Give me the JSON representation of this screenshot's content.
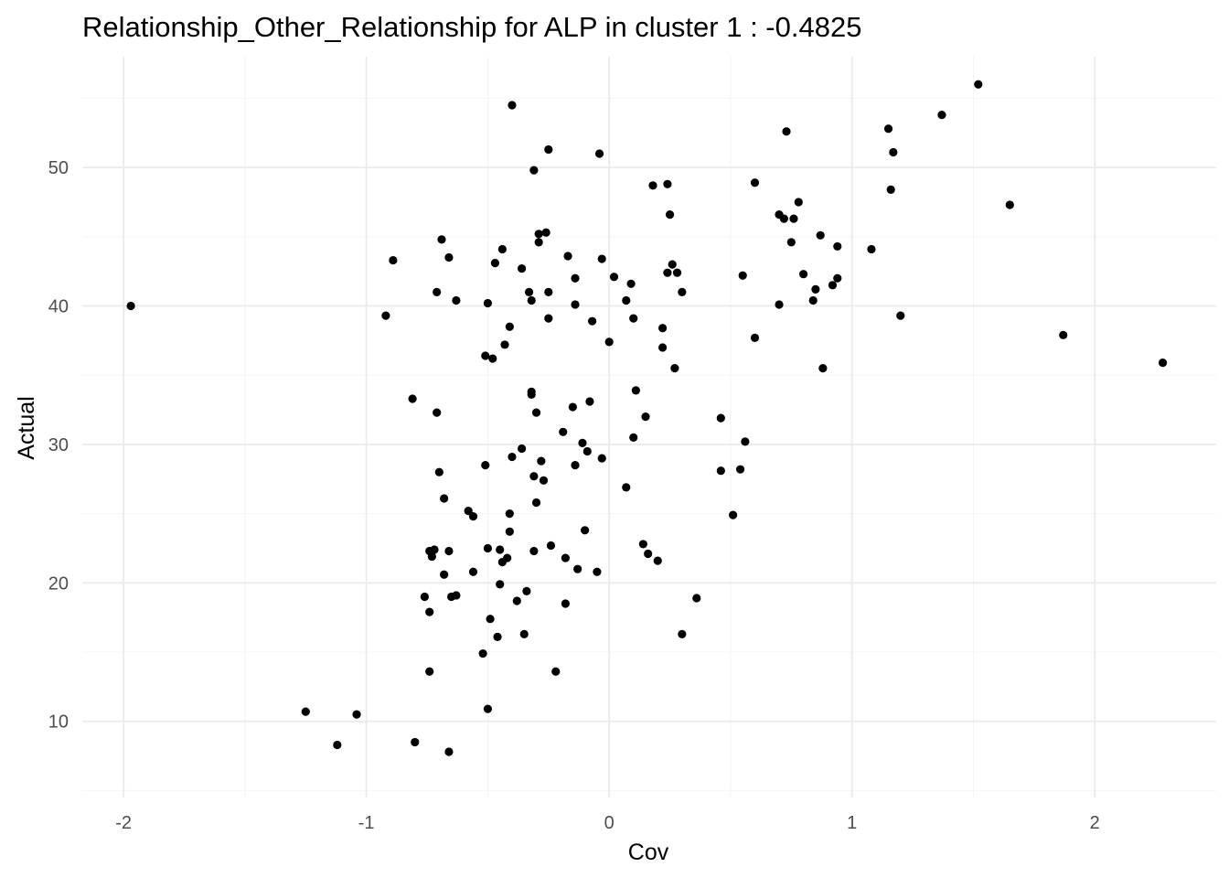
{
  "chart_data": {
    "type": "scatter",
    "title": "Relationship_Other_Relationship for ALP in cluster 1 : -0.4825",
    "xlabel": "Cov",
    "ylabel": "Actual",
    "xlim": [
      -2.17,
      2.5
    ],
    "ylim": [
      4.5,
      58.0
    ],
    "x_ticks": [
      -2,
      -1,
      0,
      1,
      2
    ],
    "x_tick_labels": [
      "-2",
      "-1",
      "0",
      "1",
      "2"
    ],
    "y_ticks": [
      10,
      20,
      30,
      40,
      50
    ],
    "y_tick_labels": [
      "10",
      "20",
      "30",
      "40",
      "50"
    ],
    "grid": true,
    "legend": "none",
    "point_color": "#000000",
    "points": [
      {
        "x": -1.97,
        "y": 40.0
      },
      {
        "x": -1.25,
        "y": 10.7
      },
      {
        "x": -1.12,
        "y": 8.3
      },
      {
        "x": -1.04,
        "y": 10.5
      },
      {
        "x": -0.92,
        "y": 39.3
      },
      {
        "x": -0.89,
        "y": 43.3
      },
      {
        "x": -0.81,
        "y": 33.3
      },
      {
        "x": -0.8,
        "y": 8.5
      },
      {
        "x": -0.76,
        "y": 19.0
      },
      {
        "x": -0.74,
        "y": 17.9
      },
      {
        "x": -0.74,
        "y": 13.6
      },
      {
        "x": -0.74,
        "y": 22.3
      },
      {
        "x": -0.73,
        "y": 21.9
      },
      {
        "x": -0.72,
        "y": 22.4
      },
      {
        "x": -0.71,
        "y": 32.3
      },
      {
        "x": -0.71,
        "y": 41.0
      },
      {
        "x": -0.7,
        "y": 28.0
      },
      {
        "x": -0.69,
        "y": 44.8
      },
      {
        "x": -0.68,
        "y": 26.1
      },
      {
        "x": -0.68,
        "y": 20.6
      },
      {
        "x": -0.66,
        "y": 43.5
      },
      {
        "x": -0.66,
        "y": 22.3
      },
      {
        "x": -0.66,
        "y": 7.8
      },
      {
        "x": -0.65,
        "y": 19.0
      },
      {
        "x": -0.63,
        "y": 19.1
      },
      {
        "x": -0.63,
        "y": 40.4
      },
      {
        "x": -0.58,
        "y": 25.2
      },
      {
        "x": -0.56,
        "y": 24.8
      },
      {
        "x": -0.56,
        "y": 20.8
      },
      {
        "x": -0.52,
        "y": 14.9
      },
      {
        "x": -0.51,
        "y": 28.5
      },
      {
        "x": -0.51,
        "y": 36.4
      },
      {
        "x": -0.5,
        "y": 22.5
      },
      {
        "x": -0.5,
        "y": 40.2
      },
      {
        "x": -0.5,
        "y": 10.9
      },
      {
        "x": -0.49,
        "y": 17.4
      },
      {
        "x": -0.48,
        "y": 36.2
      },
      {
        "x": -0.47,
        "y": 43.1
      },
      {
        "x": -0.46,
        "y": 16.1
      },
      {
        "x": -0.45,
        "y": 19.9
      },
      {
        "x": -0.45,
        "y": 22.4
      },
      {
        "x": -0.44,
        "y": 21.5
      },
      {
        "x": -0.44,
        "y": 44.1
      },
      {
        "x": -0.43,
        "y": 37.2
      },
      {
        "x": -0.42,
        "y": 21.8
      },
      {
        "x": -0.41,
        "y": 38.5
      },
      {
        "x": -0.41,
        "y": 25.0
      },
      {
        "x": -0.41,
        "y": 23.7
      },
      {
        "x": -0.4,
        "y": 29.1
      },
      {
        "x": -0.4,
        "y": 54.5
      },
      {
        "x": -0.38,
        "y": 18.7
      },
      {
        "x": -0.36,
        "y": 42.7
      },
      {
        "x": -0.36,
        "y": 29.7
      },
      {
        "x": -0.35,
        "y": 16.3
      },
      {
        "x": -0.34,
        "y": 19.4
      },
      {
        "x": -0.33,
        "y": 41.0
      },
      {
        "x": -0.32,
        "y": 40.4
      },
      {
        "x": -0.32,
        "y": 33.8
      },
      {
        "x": -0.32,
        "y": 33.6
      },
      {
        "x": -0.31,
        "y": 27.7
      },
      {
        "x": -0.31,
        "y": 22.3
      },
      {
        "x": -0.31,
        "y": 49.8
      },
      {
        "x": -0.3,
        "y": 32.3
      },
      {
        "x": -0.3,
        "y": 25.8
      },
      {
        "x": -0.29,
        "y": 45.2
      },
      {
        "x": -0.29,
        "y": 44.6
      },
      {
        "x": -0.28,
        "y": 28.8
      },
      {
        "x": -0.27,
        "y": 27.4
      },
      {
        "x": -0.26,
        "y": 45.3
      },
      {
        "x": -0.25,
        "y": 41.0
      },
      {
        "x": -0.25,
        "y": 39.1
      },
      {
        "x": -0.25,
        "y": 51.3
      },
      {
        "x": -0.24,
        "y": 22.7
      },
      {
        "x": -0.22,
        "y": 13.6
      },
      {
        "x": -0.19,
        "y": 30.9
      },
      {
        "x": -0.18,
        "y": 18.5
      },
      {
        "x": -0.18,
        "y": 21.8
      },
      {
        "x": -0.17,
        "y": 43.6
      },
      {
        "x": -0.15,
        "y": 32.7
      },
      {
        "x": -0.14,
        "y": 28.5
      },
      {
        "x": -0.14,
        "y": 42.0
      },
      {
        "x": -0.14,
        "y": 40.1
      },
      {
        "x": -0.13,
        "y": 21.0
      },
      {
        "x": -0.11,
        "y": 30.1
      },
      {
        "x": -0.1,
        "y": 23.8
      },
      {
        "x": -0.09,
        "y": 29.5
      },
      {
        "x": -0.08,
        "y": 33.1
      },
      {
        "x": -0.07,
        "y": 38.9
      },
      {
        "x": -0.05,
        "y": 20.8
      },
      {
        "x": -0.04,
        "y": 51.0
      },
      {
        "x": -0.03,
        "y": 43.4
      },
      {
        "x": -0.03,
        "y": 29.0
      },
      {
        "x": 0.0,
        "y": 37.4
      },
      {
        "x": 0.02,
        "y": 42.1
      },
      {
        "x": 0.07,
        "y": 26.9
      },
      {
        "x": 0.07,
        "y": 40.4
      },
      {
        "x": 0.09,
        "y": 41.6
      },
      {
        "x": 0.1,
        "y": 39.1
      },
      {
        "x": 0.1,
        "y": 30.5
      },
      {
        "x": 0.11,
        "y": 33.9
      },
      {
        "x": 0.14,
        "y": 22.8
      },
      {
        "x": 0.15,
        "y": 32.0
      },
      {
        "x": 0.16,
        "y": 22.1
      },
      {
        "x": 0.18,
        "y": 48.7
      },
      {
        "x": 0.2,
        "y": 21.6
      },
      {
        "x": 0.22,
        "y": 38.4
      },
      {
        "x": 0.22,
        "y": 37.0
      },
      {
        "x": 0.24,
        "y": 48.8
      },
      {
        "x": 0.24,
        "y": 42.4
      },
      {
        "x": 0.25,
        "y": 46.6
      },
      {
        "x": 0.26,
        "y": 43.0
      },
      {
        "x": 0.27,
        "y": 35.5
      },
      {
        "x": 0.28,
        "y": 42.4
      },
      {
        "x": 0.3,
        "y": 16.3
      },
      {
        "x": 0.3,
        "y": 41.0
      },
      {
        "x": 0.36,
        "y": 18.9
      },
      {
        "x": 0.46,
        "y": 28.1
      },
      {
        "x": 0.46,
        "y": 31.9
      },
      {
        "x": 0.51,
        "y": 24.9
      },
      {
        "x": 0.54,
        "y": 28.2
      },
      {
        "x": 0.55,
        "y": 42.2
      },
      {
        "x": 0.56,
        "y": 30.2
      },
      {
        "x": 0.6,
        "y": 48.9
      },
      {
        "x": 0.6,
        "y": 37.7
      },
      {
        "x": 0.7,
        "y": 40.1
      },
      {
        "x": 0.7,
        "y": 46.6
      },
      {
        "x": 0.72,
        "y": 46.3
      },
      {
        "x": 0.73,
        "y": 52.6
      },
      {
        "x": 0.75,
        "y": 44.6
      },
      {
        "x": 0.76,
        "y": 46.3
      },
      {
        "x": 0.78,
        "y": 47.5
      },
      {
        "x": 0.8,
        "y": 42.3
      },
      {
        "x": 0.84,
        "y": 40.4
      },
      {
        "x": 0.85,
        "y": 41.2
      },
      {
        "x": 0.87,
        "y": 45.1
      },
      {
        "x": 0.88,
        "y": 35.5
      },
      {
        "x": 0.92,
        "y": 41.5
      },
      {
        "x": 0.94,
        "y": 42.0
      },
      {
        "x": 0.94,
        "y": 44.3
      },
      {
        "x": 1.08,
        "y": 44.1
      },
      {
        "x": 1.15,
        "y": 52.8
      },
      {
        "x": 1.16,
        "y": 48.4
      },
      {
        "x": 1.17,
        "y": 51.1
      },
      {
        "x": 1.2,
        "y": 39.3
      },
      {
        "x": 1.37,
        "y": 53.8
      },
      {
        "x": 1.52,
        "y": 56.0
      },
      {
        "x": 1.65,
        "y": 47.3
      },
      {
        "x": 1.87,
        "y": 37.9
      },
      {
        "x": 2.28,
        "y": 35.9
      }
    ]
  }
}
